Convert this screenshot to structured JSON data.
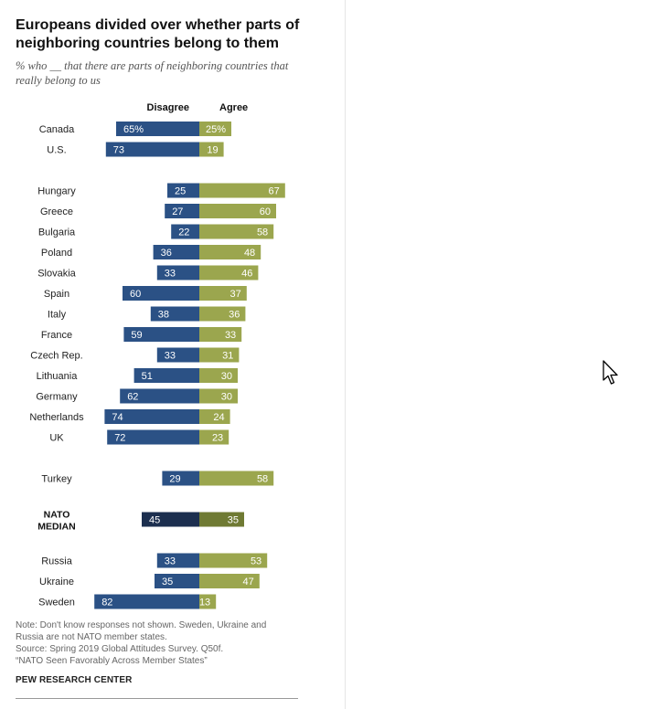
{
  "title": "Europeans divided over whether parts of neighboring countries belong to them",
  "subtitle": "% who __ that there are parts of neighboring countries that really belong to us",
  "notes": [
    "Note: Don't know responses not shown. Sweden, Ukraine and",
    "Russia are not NATO member states.",
    "Source: Spring 2019 Global Attitudes Survey. Q50f.",
    "“NATO Seen Favorably Across Member States”"
  ],
  "source_label": "PEW RESEARCH CENTER",
  "chart_data": {
    "type": "bar",
    "orientation": "diverging-horizontal",
    "series_labels": {
      "disagree": "Disagree",
      "agree": "Agree"
    },
    "colors": {
      "disagree": "#2b5185",
      "agree": "#9ba64e",
      "median_disagree": "#1c2f4f",
      "median_agree": "#6f7a33"
    },
    "groups": [
      {
        "rows": [
          {
            "label": [
              "Canada"
            ],
            "disagree": 65,
            "agree": 25,
            "disagree_text": "65%",
            "agree_text": "25%"
          },
          {
            "label": [
              "U.S."
            ],
            "disagree": 73,
            "agree": 19
          }
        ]
      },
      {
        "rows": [
          {
            "label": [
              "Hungary"
            ],
            "disagree": 25,
            "agree": 67
          },
          {
            "label": [
              "Greece"
            ],
            "disagree": 27,
            "agree": 60
          },
          {
            "label": [
              "Bulgaria"
            ],
            "disagree": 22,
            "agree": 58
          },
          {
            "label": [
              "Poland"
            ],
            "disagree": 36,
            "agree": 48
          },
          {
            "label": [
              "Slovakia"
            ],
            "disagree": 33,
            "agree": 46
          },
          {
            "label": [
              "Spain"
            ],
            "disagree": 60,
            "agree": 37
          },
          {
            "label": [
              "Italy"
            ],
            "disagree": 38,
            "agree": 36
          },
          {
            "label": [
              "France"
            ],
            "disagree": 59,
            "agree": 33
          },
          {
            "label": [
              "Czech Rep."
            ],
            "disagree": 33,
            "agree": 31
          },
          {
            "label": [
              "Lithuania"
            ],
            "disagree": 51,
            "agree": 30
          },
          {
            "label": [
              "Germany"
            ],
            "disagree": 62,
            "agree": 30
          },
          {
            "label": [
              "Netherlands"
            ],
            "disagree": 74,
            "agree": 24
          },
          {
            "label": [
              "UK"
            ],
            "disagree": 72,
            "agree": 23
          }
        ]
      },
      {
        "rows": [
          {
            "label": [
              "Turkey"
            ],
            "disagree": 29,
            "agree": 58
          }
        ]
      },
      {
        "rows": [
          {
            "label": [
              "NATO",
              "MEDIAN"
            ],
            "disagree": 45,
            "agree": 35,
            "median": true
          }
        ]
      },
      {
        "rows": [
          {
            "label": [
              "Russia"
            ],
            "disagree": 33,
            "agree": 53
          },
          {
            "label": [
              "Ukraine"
            ],
            "disagree": 35,
            "agree": 47
          },
          {
            "label": [
              "Sweden"
            ],
            "disagree": 82,
            "agree": 13
          }
        ]
      }
    ]
  }
}
